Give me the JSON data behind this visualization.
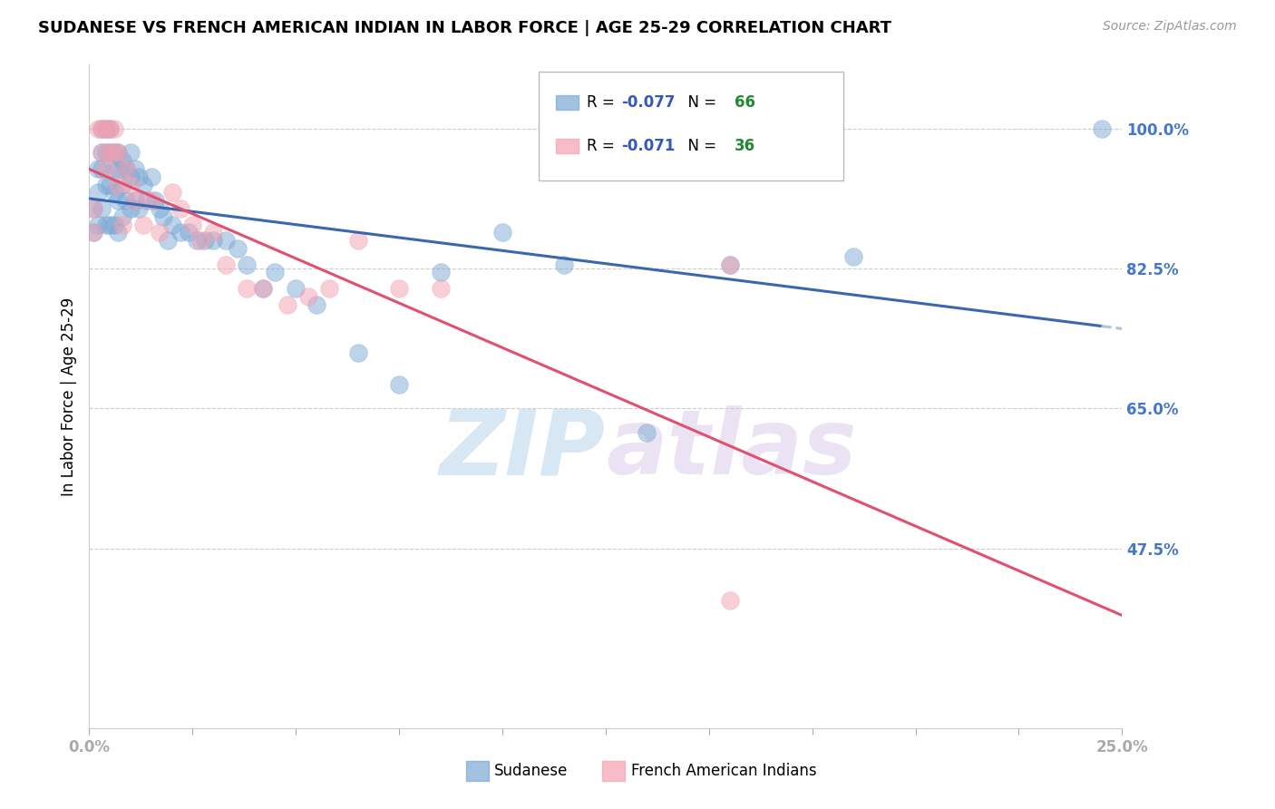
{
  "title": "SUDANESE VS FRENCH AMERICAN INDIAN IN LABOR FORCE | AGE 25-29 CORRELATION CHART",
  "source": "Source: ZipAtlas.com",
  "ylabel": "In Labor Force | Age 25-29",
  "xlim": [
    0.0,
    0.25
  ],
  "ylim": [
    0.25,
    1.08
  ],
  "xticks": [
    0.0,
    0.025,
    0.05,
    0.075,
    0.1,
    0.125,
    0.15,
    0.175,
    0.2,
    0.225,
    0.25
  ],
  "xticklabels_show": [
    "0.0%",
    "25.0%"
  ],
  "ytick_positions": [
    0.475,
    0.65,
    0.825,
    1.0
  ],
  "ytick_labels": [
    "47.5%",
    "65.0%",
    "82.5%",
    "100.0%"
  ],
  "grid_color": "#cccccc",
  "background_color": "#ffffff",
  "sudanese_color": "#7aa8d4",
  "french_color": "#f4a0b0",
  "trendline_blue": "#3a68b0",
  "trendline_pink": "#e05070",
  "trendline_dashed": "#b0c4d8",
  "sudanese_R": -0.077,
  "sudanese_N": 66,
  "french_R": -0.071,
  "french_N": 36,
  "sudanese_x": [
    0.001,
    0.001,
    0.002,
    0.002,
    0.002,
    0.003,
    0.003,
    0.003,
    0.003,
    0.004,
    0.004,
    0.004,
    0.004,
    0.005,
    0.005,
    0.005,
    0.005,
    0.006,
    0.006,
    0.006,
    0.006,
    0.007,
    0.007,
    0.007,
    0.007,
    0.008,
    0.008,
    0.008,
    0.009,
    0.009,
    0.01,
    0.01,
    0.01,
    0.011,
    0.011,
    0.012,
    0.012,
    0.013,
    0.014,
    0.015,
    0.016,
    0.017,
    0.018,
    0.019,
    0.02,
    0.022,
    0.024,
    0.026,
    0.028,
    0.03,
    0.033,
    0.036,
    0.038,
    0.042,
    0.045,
    0.05,
    0.055,
    0.065,
    0.075,
    0.085,
    0.1,
    0.115,
    0.135,
    0.155,
    0.185,
    0.245
  ],
  "sudanese_y": [
    0.9,
    0.87,
    0.95,
    0.92,
    0.88,
    1.0,
    0.97,
    0.95,
    0.9,
    1.0,
    0.97,
    0.93,
    0.88,
    1.0,
    0.97,
    0.93,
    0.88,
    0.97,
    0.95,
    0.92,
    0.88,
    0.97,
    0.95,
    0.91,
    0.87,
    0.96,
    0.93,
    0.89,
    0.95,
    0.91,
    0.97,
    0.94,
    0.9,
    0.95,
    0.91,
    0.94,
    0.9,
    0.93,
    0.91,
    0.94,
    0.91,
    0.9,
    0.89,
    0.86,
    0.88,
    0.87,
    0.87,
    0.86,
    0.86,
    0.86,
    0.86,
    0.85,
    0.83,
    0.8,
    0.82,
    0.8,
    0.78,
    0.72,
    0.68,
    0.82,
    0.87,
    0.83,
    0.62,
    0.83,
    0.84,
    1.0
  ],
  "french_x": [
    0.001,
    0.001,
    0.002,
    0.003,
    0.003,
    0.004,
    0.004,
    0.005,
    0.005,
    0.006,
    0.006,
    0.007,
    0.007,
    0.008,
    0.009,
    0.01,
    0.011,
    0.013,
    0.015,
    0.017,
    0.02,
    0.022,
    0.025,
    0.027,
    0.03,
    0.033,
    0.038,
    0.042,
    0.048,
    0.053,
    0.058,
    0.065,
    0.075,
    0.085,
    0.155,
    0.155
  ],
  "french_y": [
    0.9,
    0.87,
    1.0,
    1.0,
    0.97,
    1.0,
    0.95,
    1.0,
    0.97,
    1.0,
    0.97,
    0.97,
    0.93,
    0.88,
    0.95,
    0.93,
    0.91,
    0.88,
    0.91,
    0.87,
    0.92,
    0.9,
    0.88,
    0.86,
    0.87,
    0.83,
    0.8,
    0.8,
    0.78,
    0.79,
    0.8,
    0.86,
    0.8,
    0.8,
    0.83,
    0.41
  ]
}
